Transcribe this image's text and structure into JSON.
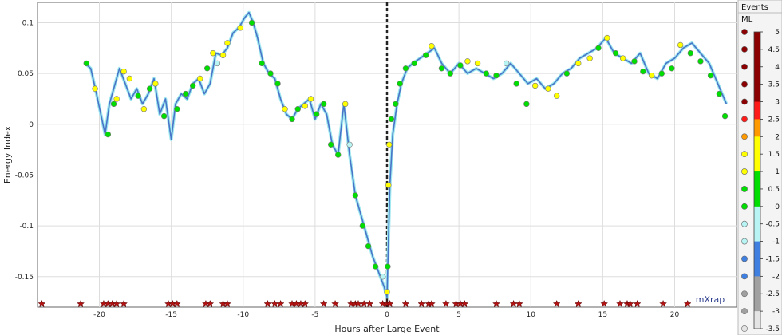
{
  "chart_data": {
    "type": "line",
    "title": "",
    "xlabel": "Hours after Large Event",
    "ylabel": "Energy Index",
    "xlim": [
      -24.3,
      24.3
    ],
    "ylim": [
      -0.18,
      0.12
    ],
    "grid": true,
    "x_ticks": [
      -20,
      -15,
      -10,
      -5,
      0,
      5,
      10,
      15,
      20
    ],
    "y_ticks": [
      0.1,
      0.05,
      0,
      -0.05,
      -0.1,
      -0.15
    ],
    "y_tick_labels": [
      "0.1",
      "0.05",
      "0",
      "-0.05",
      "-0.1",
      "-0.15"
    ],
    "x_tick_labels": [
      "-20",
      "-15",
      "-10",
      "-5",
      "0",
      "5",
      "10",
      "15",
      "20"
    ],
    "event_marker_x": 0,
    "series": [
      {
        "x": [
          -21.0,
          -20.6,
          -20.2,
          -19.9,
          -19.6,
          -19.3,
          -19.0,
          -18.6,
          -18.2,
          -17.8,
          -17.4,
          -17.0,
          -16.6,
          -16.2,
          -15.8,
          -15.4,
          -15.0,
          -14.7,
          -14.3,
          -13.9,
          -13.5,
          -13.1,
          -12.7,
          -12.3,
          -11.9,
          -11.5,
          -11.1,
          -10.7,
          -10.3,
          -9.9,
          -9.6,
          -9.3,
          -9.0,
          -8.6,
          -8.2,
          -7.8,
          -7.4,
          -7.0,
          -6.6,
          -6.2,
          -5.8,
          -5.4,
          -5.0,
          -4.6,
          -4.2,
          -3.8,
          -3.4,
          -3.0,
          -2.6,
          -2.2,
          -1.8,
          -1.4,
          -1.0,
          -0.6,
          -0.2,
          0.0,
          0.2,
          0.4,
          0.7,
          1.0,
          1.4,
          1.8,
          2.3,
          2.8,
          3.3,
          3.8,
          4.4,
          5.0,
          5.6,
          6.2,
          6.8,
          7.4,
          8.0,
          8.6,
          9.2,
          9.8,
          10.4,
          11.0,
          11.6,
          12.2,
          12.8,
          13.4,
          14.0,
          14.6,
          15.2,
          15.8,
          16.4,
          17.0,
          17.6,
          18.2,
          18.8,
          19.4,
          20.0,
          20.6,
          21.2,
          21.8,
          22.4,
          23.0,
          23.6
        ],
        "y": [
          0.06,
          0.055,
          0.03,
          0.01,
          -0.01,
          0.02,
          0.035,
          0.055,
          0.04,
          0.025,
          0.035,
          0.02,
          0.03,
          0.045,
          0.01,
          0.025,
          -0.015,
          0.02,
          0.03,
          0.025,
          0.04,
          0.045,
          0.03,
          0.04,
          0.07,
          0.068,
          0.075,
          0.09,
          0.095,
          0.105,
          0.11,
          0.1,
          0.085,
          0.06,
          0.05,
          0.045,
          0.025,
          0.01,
          0.005,
          0.015,
          0.02,
          0.025,
          0.005,
          0.02,
          0.01,
          -0.02,
          -0.03,
          0.02,
          -0.03,
          -0.07,
          -0.09,
          -0.11,
          -0.13,
          -0.145,
          -0.16,
          -0.17,
          -0.06,
          -0.01,
          0.02,
          0.04,
          0.055,
          0.06,
          0.065,
          0.07,
          0.075,
          0.06,
          0.05,
          0.06,
          0.05,
          0.055,
          0.05,
          0.045,
          0.05,
          0.06,
          0.05,
          0.04,
          0.045,
          0.035,
          0.04,
          0.05,
          0.055,
          0.065,
          0.07,
          0.075,
          0.085,
          0.07,
          0.065,
          0.06,
          0.07,
          0.05,
          0.045,
          0.06,
          0.065,
          0.075,
          0.08,
          0.07,
          0.06,
          0.04,
          0.02
        ]
      }
    ],
    "events": {
      "title": "Events",
      "subtitle": "ML",
      "colorbar_ticks": [
        "5",
        "4.5",
        "4",
        "3.5",
        "3",
        "2.5",
        "2",
        "1.5",
        "1",
        "0.5",
        "0",
        "-0.5",
        "-1",
        "-1.5",
        "-2",
        "-2.5",
        "-3",
        "-3.5"
      ],
      "colorbar_colors": [
        "#8b0000",
        "#8b0000",
        "#8b0000",
        "#8b0000",
        "#8b0000",
        "#ff1a1a",
        "#ff9900",
        "#ffff00",
        "#ffff00",
        "#00dd00",
        "#00dd00",
        "#b8f4f4",
        "#b8f4f4",
        "#3f7fe0",
        "#3f7fe0",
        "#a0a0a0",
        "#a0a0a0",
        "#e4e4e4"
      ],
      "markers": [
        {
          "x": -20.9,
          "y": 0.06,
          "c": "#00dd00"
        },
        {
          "x": -20.3,
          "y": 0.035,
          "c": "#ffff00"
        },
        {
          "x": -19.4,
          "y": -0.01,
          "c": "#00dd00"
        },
        {
          "x": -19.0,
          "y": 0.02,
          "c": "#00dd00"
        },
        {
          "x": -18.8,
          "y": 0.025,
          "c": "#ffff00"
        },
        {
          "x": -18.3,
          "y": 0.052,
          "c": "#ffff00"
        },
        {
          "x": -17.9,
          "y": 0.045,
          "c": "#ffff00"
        },
        {
          "x": -17.3,
          "y": 0.028,
          "c": "#00dd00"
        },
        {
          "x": -16.9,
          "y": 0.015,
          "c": "#ffff00"
        },
        {
          "x": -16.5,
          "y": 0.035,
          "c": "#00dd00"
        },
        {
          "x": -16.1,
          "y": 0.04,
          "c": "#ffff00"
        },
        {
          "x": -15.5,
          "y": 0.008,
          "c": "#00dd00"
        },
        {
          "x": -14.6,
          "y": 0.015,
          "c": "#00dd00"
        },
        {
          "x": -14.0,
          "y": 0.03,
          "c": "#00dd00"
        },
        {
          "x": -13.5,
          "y": 0.038,
          "c": "#00dd00"
        },
        {
          "x": -13.0,
          "y": 0.045,
          "c": "#ffff00"
        },
        {
          "x": -12.5,
          "y": 0.055,
          "c": "#00dd00"
        },
        {
          "x": -12.1,
          "y": 0.07,
          "c": "#ffff00"
        },
        {
          "x": -11.8,
          "y": 0.06,
          "c": "#b8f4f4"
        },
        {
          "x": -11.4,
          "y": 0.068,
          "c": "#ffff00"
        },
        {
          "x": -11.1,
          "y": 0.08,
          "c": "#ffff00"
        },
        {
          "x": -10.2,
          "y": 0.095,
          "c": "#ffff00"
        },
        {
          "x": -9.4,
          "y": 0.1,
          "c": "#00dd00"
        },
        {
          "x": -8.7,
          "y": 0.06,
          "c": "#00dd00"
        },
        {
          "x": -8.1,
          "y": 0.05,
          "c": "#00dd00"
        },
        {
          "x": -7.6,
          "y": 0.04,
          "c": "#00dd00"
        },
        {
          "x": -7.1,
          "y": 0.015,
          "c": "#ffff00"
        },
        {
          "x": -6.6,
          "y": 0.005,
          "c": "#00dd00"
        },
        {
          "x": -6.2,
          "y": 0.015,
          "c": "#00dd00"
        },
        {
          "x": -5.7,
          "y": 0.018,
          "c": "#ffff00"
        },
        {
          "x": -5.3,
          "y": 0.025,
          "c": "#ffff00"
        },
        {
          "x": -4.9,
          "y": 0.01,
          "c": "#00dd00"
        },
        {
          "x": -4.4,
          "y": 0.02,
          "c": "#00dd00"
        },
        {
          "x": -3.9,
          "y": -0.02,
          "c": "#00dd00"
        },
        {
          "x": -3.4,
          "y": -0.03,
          "c": "#00dd00"
        },
        {
          "x": -2.9,
          "y": 0.02,
          "c": "#ffff00"
        },
        {
          "x": -2.6,
          "y": -0.02,
          "c": "#b8f4f4"
        },
        {
          "x": -2.2,
          "y": -0.07,
          "c": "#00dd00"
        },
        {
          "x": -1.7,
          "y": -0.1,
          "c": "#00dd00"
        },
        {
          "x": -1.3,
          "y": -0.12,
          "c": "#00dd00"
        },
        {
          "x": -0.8,
          "y": -0.14,
          "c": "#00dd00"
        },
        {
          "x": -0.3,
          "y": -0.15,
          "c": "#b8f4f4"
        },
        {
          "x": 0.0,
          "y": -0.165,
          "c": "#ffff00"
        },
        {
          "x": 0.05,
          "y": -0.14,
          "c": "#00dd00"
        },
        {
          "x": 0.1,
          "y": -0.06,
          "c": "#ffff00"
        },
        {
          "x": 0.15,
          "y": -0.02,
          "c": "#ffff00"
        },
        {
          "x": 0.3,
          "y": 0.005,
          "c": "#00dd00"
        },
        {
          "x": 0.6,
          "y": 0.02,
          "c": "#00dd00"
        },
        {
          "x": 0.9,
          "y": 0.04,
          "c": "#00dd00"
        },
        {
          "x": 1.3,
          "y": 0.055,
          "c": "#00dd00"
        },
        {
          "x": 1.9,
          "y": 0.06,
          "c": "#00dd00"
        },
        {
          "x": 2.7,
          "y": 0.068,
          "c": "#00dd00"
        },
        {
          "x": 3.1,
          "y": 0.077,
          "c": "#ffff00"
        },
        {
          "x": 3.8,
          "y": 0.055,
          "c": "#00dd00"
        },
        {
          "x": 4.4,
          "y": 0.05,
          "c": "#00dd00"
        },
        {
          "x": 5.1,
          "y": 0.058,
          "c": "#00dd00"
        },
        {
          "x": 5.6,
          "y": 0.062,
          "c": "#ffff00"
        },
        {
          "x": 6.3,
          "y": 0.06,
          "c": "#ffff00"
        },
        {
          "x": 6.9,
          "y": 0.05,
          "c": "#00dd00"
        },
        {
          "x": 7.6,
          "y": 0.048,
          "c": "#00dd00"
        },
        {
          "x": 8.3,
          "y": 0.06,
          "c": "#b8f4f4"
        },
        {
          "x": 9.0,
          "y": 0.04,
          "c": "#00dd00"
        },
        {
          "x": 9.7,
          "y": 0.02,
          "c": "#00dd00"
        },
        {
          "x": 10.3,
          "y": 0.038,
          "c": "#ffff00"
        },
        {
          "x": 11.2,
          "y": 0.035,
          "c": "#ffff00"
        },
        {
          "x": 11.8,
          "y": 0.028,
          "c": "#ffff00"
        },
        {
          "x": 12.5,
          "y": 0.05,
          "c": "#00dd00"
        },
        {
          "x": 13.3,
          "y": 0.06,
          "c": "#ffff00"
        },
        {
          "x": 14.1,
          "y": 0.065,
          "c": "#ffff00"
        },
        {
          "x": 14.7,
          "y": 0.075,
          "c": "#00dd00"
        },
        {
          "x": 15.3,
          "y": 0.085,
          "c": "#ffff00"
        },
        {
          "x": 15.9,
          "y": 0.07,
          "c": "#00dd00"
        },
        {
          "x": 16.4,
          "y": 0.065,
          "c": "#ffff00"
        },
        {
          "x": 17.2,
          "y": 0.062,
          "c": "#00dd00"
        },
        {
          "x": 17.8,
          "y": 0.052,
          "c": "#00dd00"
        },
        {
          "x": 18.4,
          "y": 0.048,
          "c": "#ffff00"
        },
        {
          "x": 19.1,
          "y": 0.05,
          "c": "#00dd00"
        },
        {
          "x": 19.8,
          "y": 0.055,
          "c": "#00dd00"
        },
        {
          "x": 20.4,
          "y": 0.078,
          "c": "#ffff00"
        },
        {
          "x": 21.1,
          "y": 0.07,
          "c": "#00dd00"
        },
        {
          "x": 21.8,
          "y": 0.062,
          "c": "#00dd00"
        },
        {
          "x": 22.5,
          "y": 0.048,
          "c": "#00dd00"
        },
        {
          "x": 23.1,
          "y": 0.03,
          "c": "#00dd00"
        },
        {
          "x": 23.5,
          "y": 0.008,
          "c": "#00dd00"
        }
      ],
      "large_event_stars_x": [
        -24.0,
        -21.3,
        -19.7,
        -19.4,
        -19.1,
        -18.8,
        -18.3,
        -15.2,
        -14.9,
        -14.6,
        -12.6,
        -12.3,
        -11.4,
        -11.1,
        -8.3,
        -7.8,
        -7.4,
        -6.6,
        -6.3,
        -6.0,
        -5.7,
        -4.4,
        -3.6,
        -2.5,
        -2.2,
        -2.0,
        -1.6,
        -1.2,
        -0.3,
        0.0,
        0.2,
        1.3,
        2.4,
        2.9,
        3.1,
        4.1,
        4.8,
        5.1,
        5.4,
        7.6,
        8.8,
        9.2,
        11.8,
        13.3,
        15.1,
        16.2,
        16.7,
        16.9,
        17.4,
        19.2,
        20.9
      ]
    }
  },
  "watermark": "mXrap",
  "colors": {
    "line_dark": "#4a74c8",
    "line_light": "#9ee8f0",
    "star": "#b21212",
    "vline": "#222222"
  }
}
